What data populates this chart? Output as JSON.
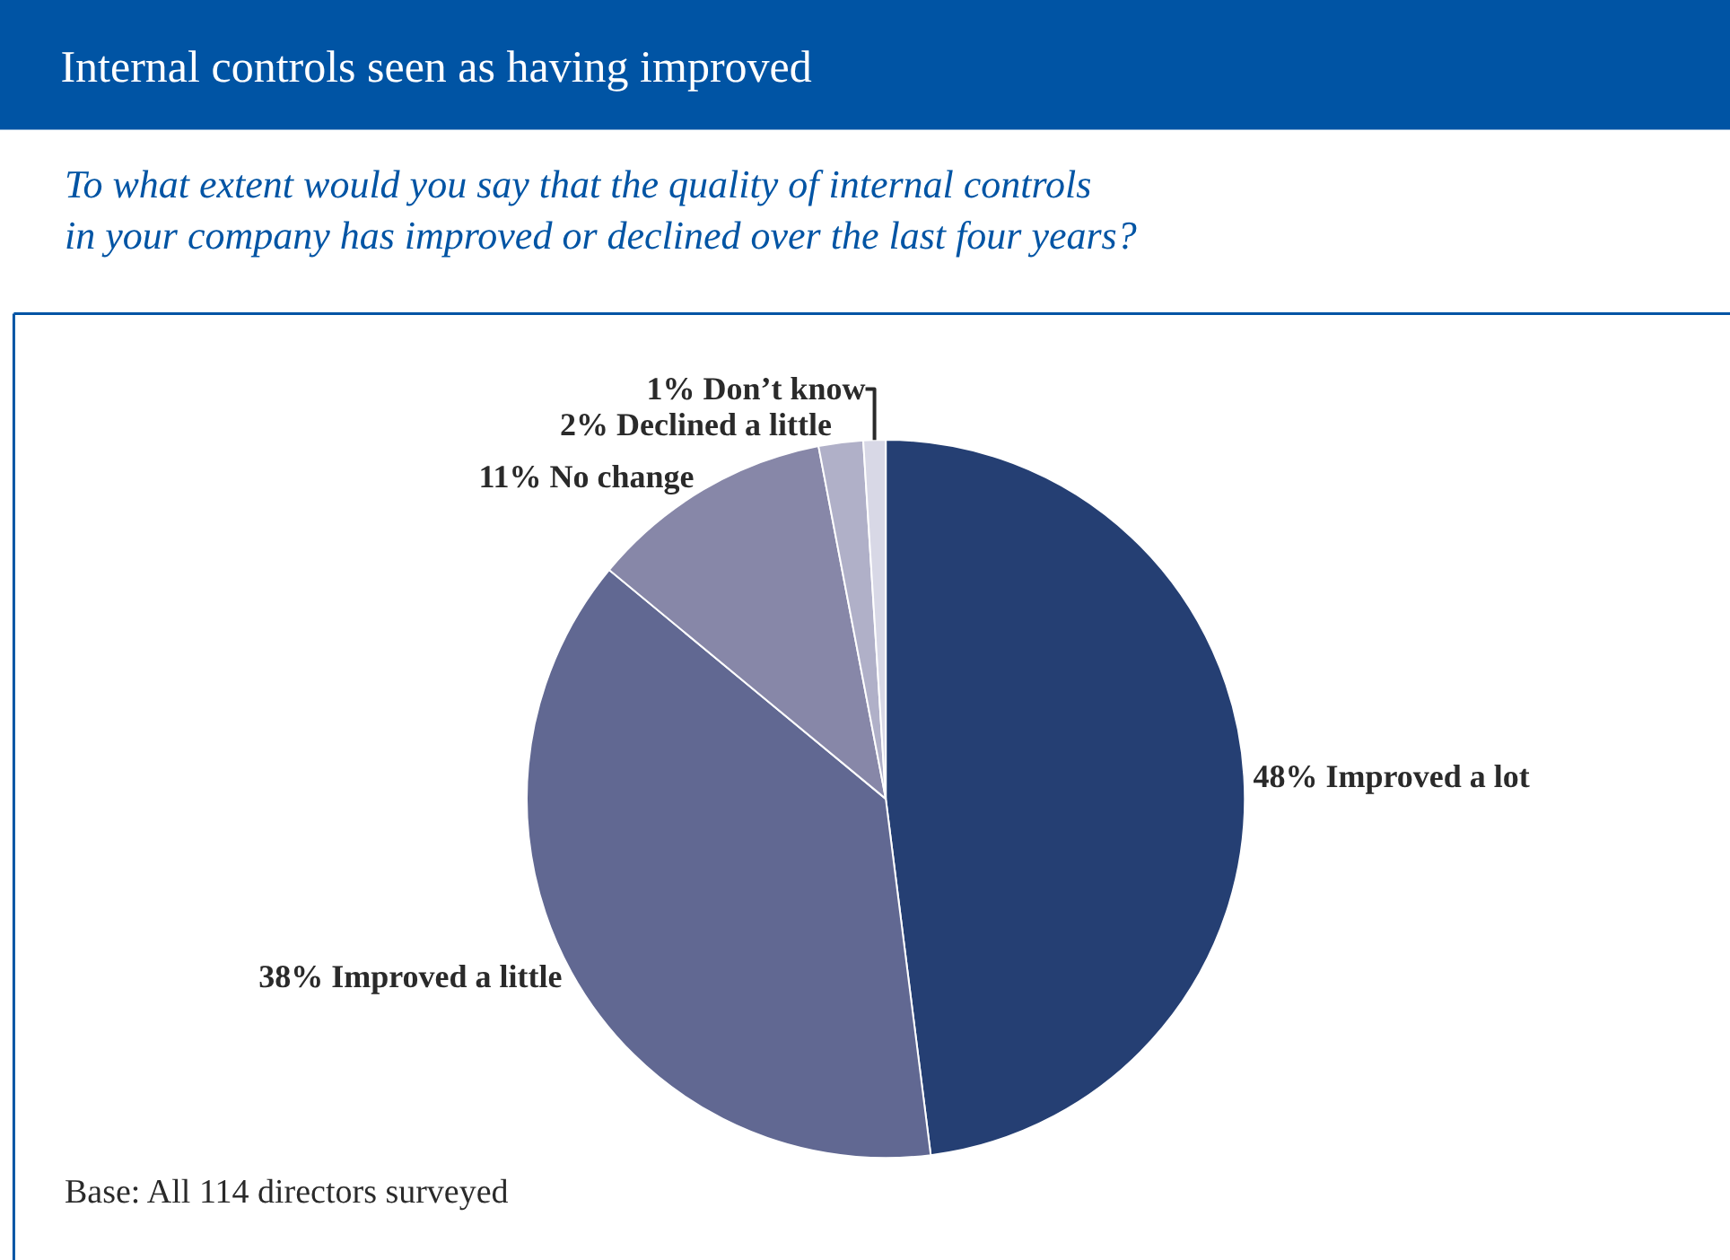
{
  "chart_data": {
    "type": "pie",
    "title": "Internal controls seen as having improved",
    "subtitle": "To what extent would you say that the quality of internal controls in your company has improved or declined over the last four years?",
    "categories": [
      "Improved a lot",
      "Improved a little",
      "No change",
      "Declined a little",
      "Don’t know"
    ],
    "values": [
      48,
      38,
      11,
      2,
      1
    ],
    "colors": [
      "#253f73",
      "#616892",
      "#8787a8",
      "#b0b0c8",
      "#d8d8e6"
    ],
    "value_labels": [
      "48%",
      "38%",
      "11%",
      "2%",
      "1%"
    ],
    "annotations": [
      "Base: All 114 directors surveyed"
    ]
  }
}
